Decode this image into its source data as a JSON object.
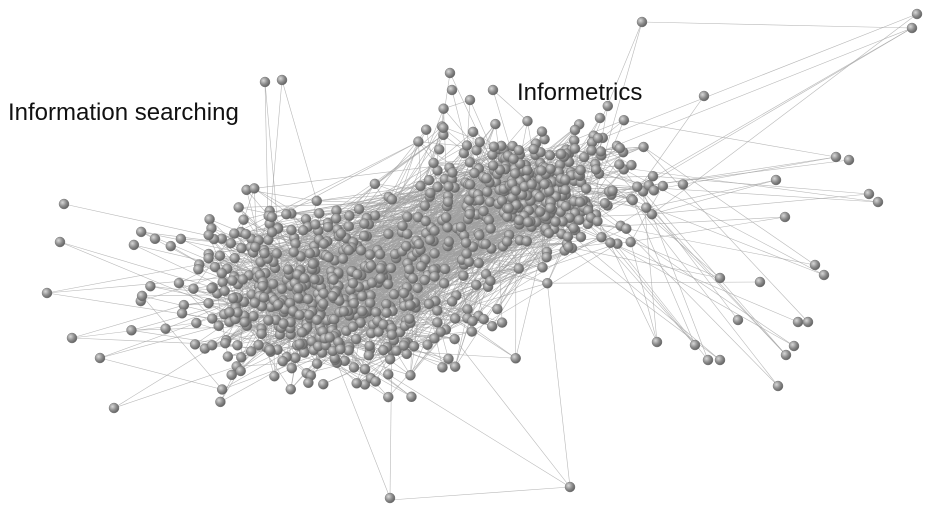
{
  "labels": {
    "cluster_1": "Information searching",
    "cluster_2": "Informetrics"
  },
  "colors": {
    "node_fill": "#8c8c8c",
    "node_highlight": "#d8d8d8",
    "node_stroke": "#6e6e6e",
    "edge": "#a0a0a0",
    "background": "#ffffff"
  },
  "icons": {
    "node": "sphere-node-icon",
    "edge": "directed-edge-arrow"
  }
}
